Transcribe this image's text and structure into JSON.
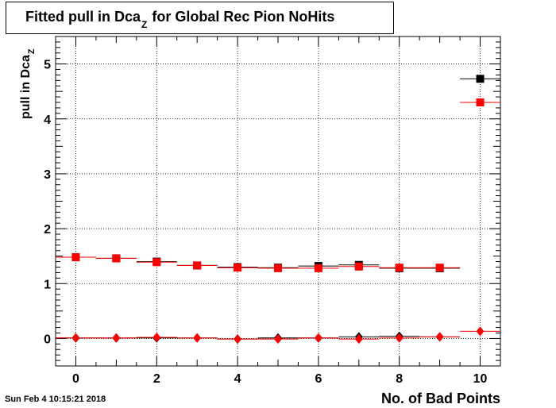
{
  "chart_data": {
    "type": "scatter",
    "title_main": "Fitted pull in Dca",
    "title_sub": "Z",
    "title_rest": "for Global Rec Pion NoHits",
    "xlabel": "No. of Bad Points",
    "ylabel_main": "pull in Dca",
    "ylabel_sub": "Z",
    "xlim": [
      -0.5,
      10.5
    ],
    "ylim": [
      -0.5,
      5.5
    ],
    "xticks": [
      0,
      2,
      4,
      6,
      8,
      10
    ],
    "yticks": [
      0,
      1,
      2,
      3,
      4,
      5
    ],
    "grid": true,
    "series": [
      {
        "marker": "square",
        "color": "#000000",
        "x": [
          0,
          1,
          2,
          3,
          4,
          5,
          6,
          7,
          8,
          9,
          10
        ],
        "y": [
          1.48,
          1.46,
          1.4,
          1.33,
          1.3,
          1.29,
          1.32,
          1.34,
          1.28,
          1.28,
          4.73
        ]
      },
      {
        "marker": "square",
        "color": "#ff0000",
        "x": [
          0,
          1,
          2,
          3,
          4,
          5,
          6,
          7,
          8,
          9,
          10
        ],
        "y": [
          1.48,
          1.46,
          1.39,
          1.33,
          1.29,
          1.28,
          1.28,
          1.31,
          1.29,
          1.29,
          4.3
        ]
      },
      {
        "marker": "diamond",
        "color": "#000000",
        "x": [
          0,
          1,
          2,
          3,
          4,
          5,
          6,
          7,
          8,
          9
        ],
        "y": [
          0.01,
          0.01,
          0.01,
          0.01,
          -0.01,
          0.01,
          0.01,
          0.03,
          0.04,
          0.03
        ]
      },
      {
        "marker": "diamond",
        "color": "#ff0000",
        "x": [
          0,
          1,
          2,
          3,
          4,
          5,
          6,
          7,
          8,
          9,
          10
        ],
        "y": [
          0.01,
          0.01,
          0.02,
          0.01,
          -0.01,
          -0.01,
          0.01,
          -0.01,
          0.01,
          0.03,
          0.13
        ]
      }
    ]
  },
  "footer": {
    "timestamp": "Sun Feb  4 10:15:21 2018"
  }
}
